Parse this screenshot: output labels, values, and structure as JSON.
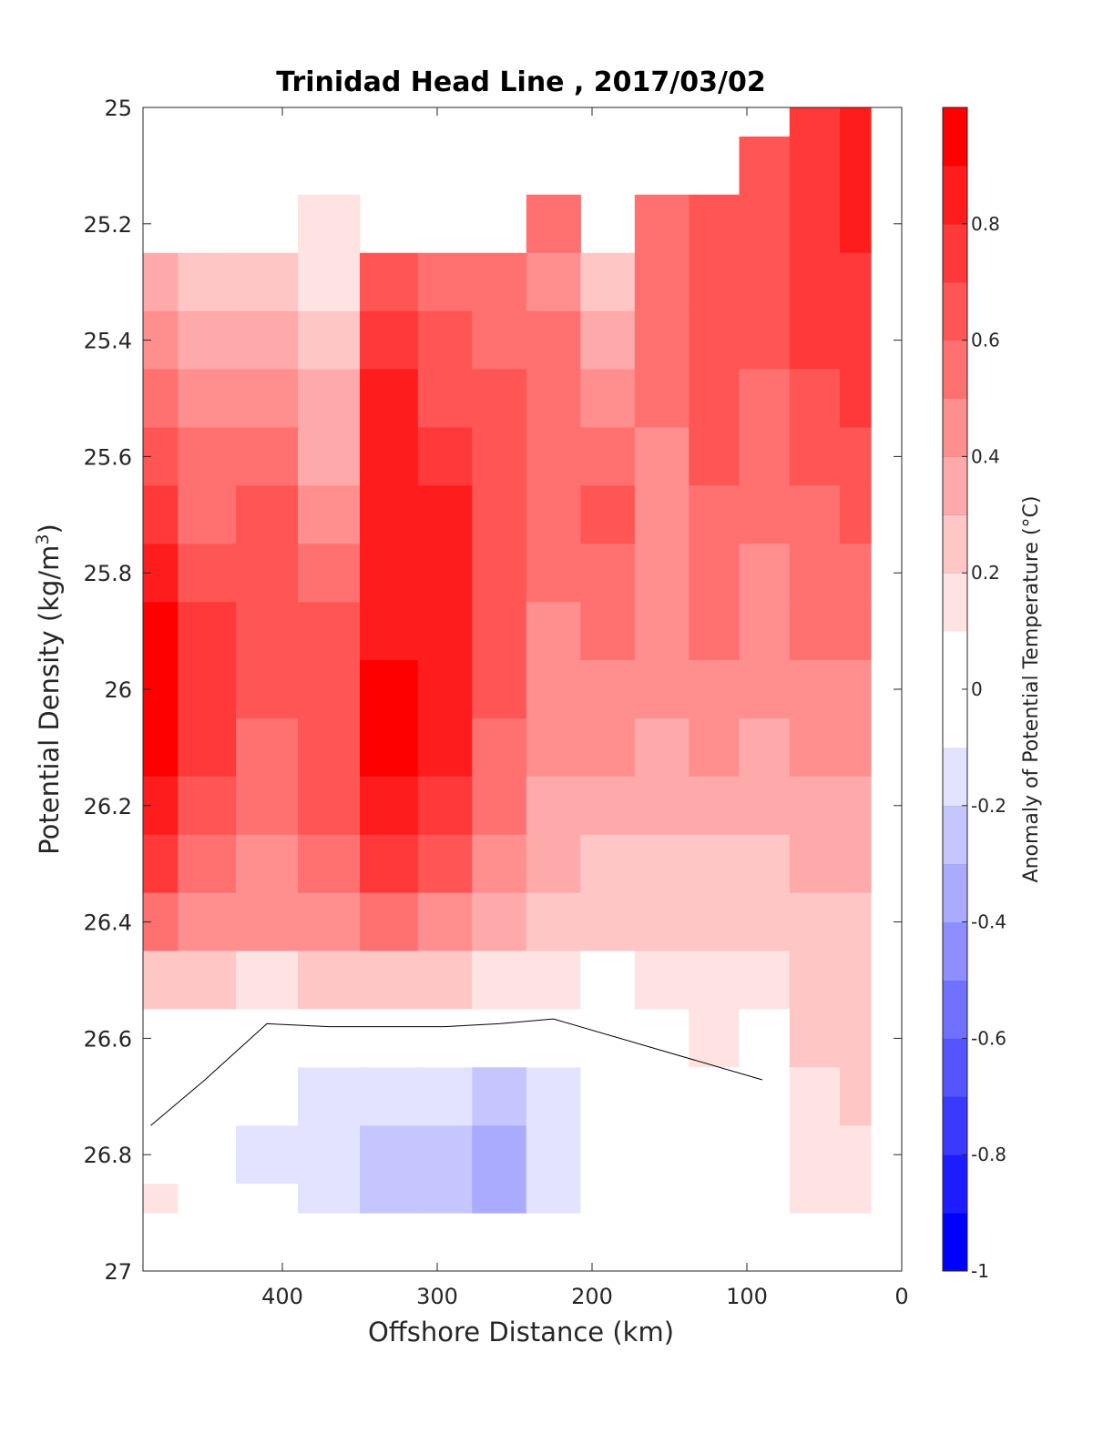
{
  "chart_data": {
    "type": "filled-contour",
    "title": "Trinidad Head Line , 2017/03/02",
    "xlabel": "Offshore Distance (km)",
    "ylabel_main": "Potential Density (kg/m",
    "ylabel_sup": "3",
    "ylabel_end": ")",
    "x_axis": {
      "lim": [
        490,
        0
      ],
      "reversed": true,
      "ticks": [
        400,
        300,
        200,
        100,
        0
      ],
      "tick_labels": [
        "400",
        "300",
        "200",
        "100",
        "0"
      ]
    },
    "y_axis": {
      "lim": [
        25,
        27
      ],
      "reversed": true,
      "ticks": [
        25,
        25.2,
        25.4,
        25.6,
        25.8,
        26,
        26.2,
        26.4,
        26.6,
        26.8,
        27
      ],
      "tick_labels": [
        "25",
        "25.2",
        "25.4",
        "25.6",
        "25.8",
        "26",
        "26.2",
        "26.4",
        "26.6",
        "26.8",
        "27"
      ]
    },
    "colorbar": {
      "label": "Anomaly of Potential Temperature (°C)",
      "range": [
        -1,
        1
      ],
      "levels": [
        -1,
        -0.9,
        -0.8,
        -0.7,
        -0.6,
        -0.5,
        -0.4,
        -0.3,
        -0.2,
        -0.1,
        0,
        0.1,
        0.2,
        0.3,
        0.4,
        0.5,
        0.6,
        0.7,
        0.8,
        0.9,
        1
      ],
      "ticks": [
        -1,
        -0.8,
        -0.6,
        -0.4,
        -0.2,
        0,
        0.2,
        0.4,
        0.6,
        0.8
      ],
      "tick_labels": [
        "-1",
        "-0.8",
        "-0.6",
        "-0.4",
        "-0.2",
        "0",
        "0.2",
        "0.4",
        "0.6",
        "0.8"
      ],
      "colormap": "blue-white-red",
      "color_negative_end": "#0000ff",
      "color_positive_end": "#ff0000",
      "color_zero": "#ffffff"
    },
    "zero_contour_line": true,
    "data_extent": {
      "x_range": [
        490,
        20
      ],
      "y_bottom": 26.9,
      "y_top_by_x": [
        {
          "x_from": 490,
          "x_to": 350,
          "y_top": 25.3
        },
        {
          "x_from": 350,
          "x_to": 250,
          "y_top": 25.3
        },
        {
          "x_from": 240,
          "x_to": 190,
          "y_top": 25.2
        },
        {
          "x_from": 180,
          "x_to": 110,
          "y_top": 25.1
        },
        {
          "x_from": 100,
          "x_to": 20,
          "y_top": 25.0
        }
      ]
    },
    "columns": {
      "x": [
        485,
        450,
        410,
        370,
        330,
        295,
        260,
        225,
        190,
        155,
        120,
        90,
        55,
        25
      ],
      "y": [
        25.0,
        25.1,
        25.2,
        25.3,
        25.4,
        25.5,
        25.6,
        25.7,
        25.8,
        25.9,
        26.0,
        26.1,
        26.2,
        26.3,
        26.4,
        26.5,
        26.6,
        26.7,
        26.8,
        26.9
      ],
      "values": [
        [
          null,
          null,
          null,
          null,
          null,
          null,
          null,
          null,
          null,
          null,
          null,
          null,
          0.75,
          0.8
        ],
        [
          null,
          null,
          null,
          null,
          null,
          null,
          null,
          null,
          null,
          null,
          null,
          0.65,
          0.75,
          0.8
        ],
        [
          null,
          null,
          null,
          0.15,
          null,
          null,
          null,
          0.5,
          null,
          0.55,
          0.65,
          0.65,
          0.7,
          0.8
        ],
        [
          0.3,
          0.2,
          0.25,
          0.15,
          0.6,
          0.55,
          0.55,
          0.45,
          0.25,
          0.55,
          0.65,
          0.65,
          0.7,
          0.75
        ],
        [
          0.4,
          0.3,
          0.35,
          0.25,
          0.75,
          0.6,
          0.55,
          0.5,
          0.35,
          0.5,
          0.65,
          0.6,
          0.7,
          0.7
        ],
        [
          0.5,
          0.4,
          0.45,
          0.3,
          0.8,
          0.65,
          0.6,
          0.5,
          0.45,
          0.5,
          0.65,
          0.55,
          0.65,
          0.7
        ],
        [
          0.6,
          0.5,
          0.55,
          0.35,
          0.8,
          0.75,
          0.6,
          0.5,
          0.55,
          0.45,
          0.6,
          0.55,
          0.6,
          0.65
        ],
        [
          0.7,
          0.55,
          0.6,
          0.45,
          0.85,
          0.8,
          0.6,
          0.5,
          0.6,
          0.45,
          0.55,
          0.5,
          0.55,
          0.6
        ],
        [
          0.8,
          0.65,
          0.6,
          0.5,
          0.85,
          0.8,
          0.65,
          0.5,
          0.55,
          0.45,
          0.55,
          0.45,
          0.5,
          0.55
        ],
        [
          0.9,
          0.7,
          0.6,
          0.6,
          0.85,
          0.8,
          0.65,
          0.45,
          0.5,
          0.45,
          0.5,
          0.45,
          0.5,
          0.5
        ],
        [
          0.95,
          0.75,
          0.6,
          0.65,
          0.9,
          0.8,
          0.6,
          0.45,
          0.45,
          0.4,
          0.45,
          0.4,
          0.45,
          0.45
        ],
        [
          0.95,
          0.75,
          0.55,
          0.65,
          0.9,
          0.8,
          0.55,
          0.4,
          0.4,
          0.35,
          0.4,
          0.35,
          0.4,
          0.4
        ],
        [
          0.85,
          0.65,
          0.5,
          0.6,
          0.8,
          0.75,
          0.5,
          0.35,
          0.3,
          0.3,
          0.35,
          0.3,
          0.35,
          0.35
        ],
        [
          0.7,
          0.55,
          0.45,
          0.5,
          0.7,
          0.65,
          0.45,
          0.3,
          0.25,
          0.25,
          0.25,
          0.25,
          0.3,
          0.3
        ],
        [
          0.5,
          0.45,
          0.4,
          0.4,
          0.5,
          0.45,
          0.35,
          0.25,
          0.2,
          0.2,
          0.2,
          0.2,
          0.25,
          0.25
        ],
        [
          0.25,
          0.2,
          0.15,
          0.2,
          0.2,
          0.2,
          0.15,
          0.1,
          0.05,
          0.1,
          0.15,
          0.15,
          0.2,
          0.25
        ],
        [
          0.05,
          -0.05,
          -0.05,
          -0.05,
          -0.05,
          -0.05,
          -0.05,
          -0.05,
          0.02,
          0.05,
          0.1,
          0.05,
          0.2,
          0.2
        ],
        [
          -0.02,
          0.02,
          -0.1,
          -0.15,
          -0.15,
          -0.2,
          -0.25,
          -0.15,
          0.02,
          0.05,
          0.08,
          -0.02,
          0.15,
          0.2
        ],
        [
          0.02,
          0.02,
          -0.15,
          -0.2,
          -0.3,
          -0.3,
          -0.35,
          -0.2,
          0.03,
          0.05,
          0.05,
          -0.03,
          0.1,
          0.15
        ],
        [
          0.1,
          0.03,
          -0.1,
          -0.15,
          -0.25,
          -0.25,
          -0.35,
          -0.15,
          0.05,
          0.05,
          0.05,
          -0.05,
          0.1,
          0.1
        ]
      ]
    }
  }
}
